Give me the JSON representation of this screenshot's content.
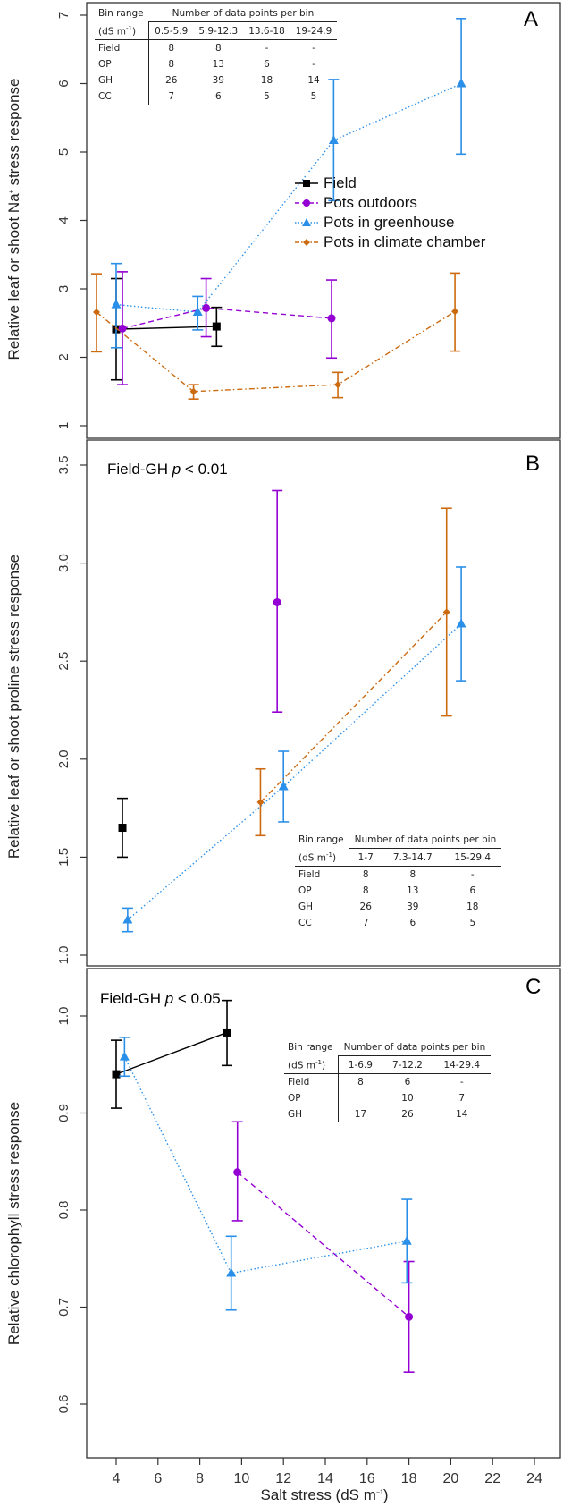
{
  "colors": {
    "field": "#000000",
    "op": "#9400d3",
    "gh": "#2a8fe8",
    "cc": "#cc6a10"
  },
  "legend": {
    "field": "Field",
    "op": "Pots outdoors",
    "gh": "Pots in greenhouse",
    "cc": "Pots in climate chamber"
  },
  "xaxis": {
    "label": "Salt stress (dS m",
    "label_sup": "−1",
    "label_end": ")",
    "ticks": [
      4,
      6,
      8,
      10,
      12,
      14,
      16,
      18,
      20,
      22,
      24
    ]
  },
  "tables": [
    {
      "title": "Number of data points per bin",
      "bin_label": "Bin range",
      "unit": "(dS m",
      "unit_sup": "-1",
      "unit_end": ")",
      "bins": [
        "0.5-5.9",
        "5.9-12.3",
        "13.6-18",
        "19-24.9"
      ],
      "rows": [
        {
          "name": "Field",
          "vals": [
            "8",
            "8",
            "-",
            "-"
          ]
        },
        {
          "name": "OP",
          "vals": [
            "8",
            "13",
            "6",
            "-"
          ]
        },
        {
          "name": "GH",
          "vals": [
            "26",
            "39",
            "18",
            "14"
          ]
        },
        {
          "name": "CC",
          "vals": [
            "7",
            "6",
            "5",
            "5"
          ]
        }
      ]
    },
    {
      "title": "Number of data points per bin",
      "bin_label": "Bin range",
      "unit": "(dS m",
      "unit_sup": "-1",
      "unit_end": ")",
      "bins": [
        "1-7",
        "7.3-14.7",
        "15-29.4"
      ],
      "rows": [
        {
          "name": "Field",
          "vals": [
            "8",
            "8",
            "-"
          ]
        },
        {
          "name": "OP",
          "vals": [
            "8",
            "13",
            "6"
          ]
        },
        {
          "name": "GH",
          "vals": [
            "26",
            "39",
            "18"
          ]
        },
        {
          "name": "CC",
          "vals": [
            "7",
            "6",
            "5"
          ]
        }
      ]
    },
    {
      "title": "Number of data points per bin",
      "bin_label": "Bin range",
      "unit": "(dS m",
      "unit_sup": "-1",
      "unit_end": ")",
      "bins": [
        "1-6.9",
        "7-12.2",
        "14-29.4"
      ],
      "rows": [
        {
          "name": "Field",
          "vals": [
            "8",
            "6",
            "-"
          ]
        },
        {
          "name": "OP",
          "vals": [
            "",
            "10",
            "7"
          ]
        },
        {
          "name": "GH",
          "vals": [
            "17",
            "26",
            "14"
          ]
        }
      ]
    }
  ],
  "chart_data": [
    {
      "type": "scatter",
      "panel": "A",
      "ylabel": "Relative leaf or shoot Na+ stress response",
      "ylabel_pre": "Relative leaf or shoot Na",
      "ylabel_sup": "+",
      "ylabel_post": " stress response",
      "yticks": [
        1,
        2,
        3,
        4,
        5,
        6,
        7
      ],
      "ylim": [
        1,
        7
      ],
      "xlim": [
        4,
        24
      ],
      "annotation": "",
      "series": [
        {
          "name": "Field",
          "key": "field",
          "points": [
            [
              4.0,
              2.41,
              1.67,
              3.15
            ],
            [
              8.8,
              2.45,
              2.16,
              2.73
            ]
          ]
        },
        {
          "name": "Pots outdoors",
          "key": "op",
          "points": [
            [
              4.3,
              2.42,
              1.6,
              3.25
            ],
            [
              8.3,
              2.72,
              2.3,
              3.15
            ],
            [
              14.3,
              2.57,
              1.99,
              3.13
            ]
          ]
        },
        {
          "name": "Pots in greenhouse",
          "key": "gh",
          "points": [
            [
              4.0,
              2.77,
              2.14,
              3.37
            ],
            [
              7.9,
              2.66,
              2.4,
              2.89
            ],
            [
              14.4,
              5.17,
              4.29,
              6.06
            ],
            [
              20.5,
              6.0,
              4.97,
              6.95
            ]
          ]
        },
        {
          "name": "Pots in climate chamber",
          "key": "cc",
          "points": [
            [
              3.06,
              2.66,
              2.08,
              3.22
            ],
            [
              7.7,
              1.5,
              1.39,
              1.6
            ],
            [
              14.6,
              1.6,
              1.41,
              1.78
            ],
            [
              20.2,
              2.67,
              2.09,
              3.23
            ]
          ]
        }
      ]
    },
    {
      "type": "scatter",
      "panel": "B",
      "ylabel": "Relative leaf or shoot proline stress response",
      "yticks": [
        1.0,
        1.5,
        2.0,
        2.5,
        3.0,
        3.5
      ],
      "ylim": [
        1.0,
        3.5
      ],
      "xlim": [
        4,
        24
      ],
      "annotation_pre": "Field-GH ",
      "annotation_p": "p",
      "annotation_post": " < 0.01",
      "series": [
        {
          "name": "Field",
          "key": "field",
          "points": [
            [
              4.3,
              1.65,
              1.5,
              1.8
            ]
          ]
        },
        {
          "name": "Pots outdoors",
          "key": "op",
          "points": [
            [
              11.7,
              2.8,
              2.24,
              3.37
            ]
          ]
        },
        {
          "name": "Pots in greenhouse",
          "key": "gh",
          "points": [
            [
              4.55,
              1.18,
              1.12,
              1.24
            ],
            [
              12.0,
              1.86,
              1.68,
              2.04
            ],
            [
              20.5,
              2.69,
              2.4,
              2.98
            ]
          ]
        },
        {
          "name": "Pots in climate chamber",
          "key": "cc",
          "points": [
            [
              10.9,
              1.78,
              1.61,
              1.95
            ],
            [
              19.8,
              2.75,
              2.22,
              3.28
            ]
          ]
        }
      ]
    },
    {
      "type": "scatter",
      "panel": "C",
      "ylabel": "Relative chlorophyll stress response",
      "yticks": [
        0.6,
        0.7,
        0.8,
        0.9,
        1.0
      ],
      "ylim": [
        0.6,
        1.0
      ],
      "xlim": [
        4,
        24
      ],
      "annotation_pre": "Field-GH ",
      "annotation_p": "p",
      "annotation_post": " < 0.05",
      "series": [
        {
          "name": "Field",
          "key": "field",
          "points": [
            [
              4.0,
              0.94,
              0.905,
              0.975
            ],
            [
              9.3,
              0.983,
              0.949,
              1.016
            ]
          ]
        },
        {
          "name": "Pots outdoors",
          "key": "op",
          "points": [
            [
              9.8,
              0.839,
              0.789,
              0.891
            ],
            [
              18.0,
              0.69,
              0.633,
              0.747
            ]
          ]
        },
        {
          "name": "Pots in greenhouse",
          "key": "gh",
          "points": [
            [
              4.4,
              0.958,
              0.938,
              0.978
            ],
            [
              9.5,
              0.735,
              0.697,
              0.773
            ],
            [
              17.9,
              0.768,
              0.725,
              0.811
            ]
          ]
        }
      ]
    }
  ],
  "panel_letters": [
    "A",
    "B",
    "C"
  ]
}
